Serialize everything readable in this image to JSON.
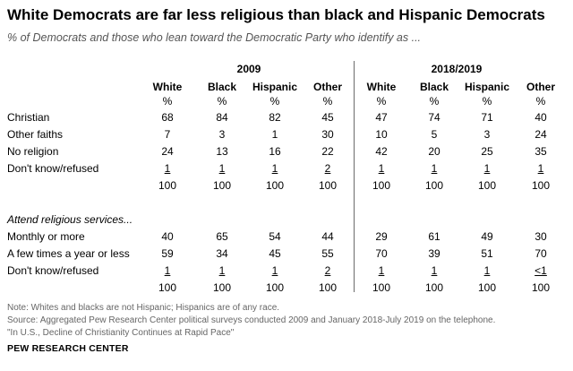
{
  "chart_data": {
    "type": "table",
    "title": "White Democrats are far less religious than black and Hispanic Democrats",
    "subtitle": "% of Democrats and those who lean toward the Democratic Party who identify as ...",
    "groups": [
      "2009",
      "2018/2019"
    ],
    "columns": [
      "White",
      "Black",
      "Hispanic",
      "Other",
      "White",
      "Black",
      "Hispanic",
      "Other"
    ],
    "unit": "%",
    "rows": [
      {
        "label": "Christian",
        "values": [
          "68",
          "84",
          "82",
          "45",
          "47",
          "74",
          "71",
          "40"
        ],
        "underline": false
      },
      {
        "label": "Other faiths",
        "values": [
          "7",
          "3",
          "1",
          "30",
          "10",
          "5",
          "3",
          "24"
        ],
        "underline": false
      },
      {
        "label": "No religion",
        "values": [
          "24",
          "13",
          "16",
          "22",
          "42",
          "20",
          "25",
          "35"
        ],
        "underline": false
      },
      {
        "label": "Don't know/refused",
        "values": [
          "1",
          "1",
          "1",
          "2",
          "1",
          "1",
          "1",
          "1"
        ],
        "underline": true
      },
      {
        "label": "",
        "values": [
          "100",
          "100",
          "100",
          "100",
          "100",
          "100",
          "100",
          "100"
        ],
        "underline": false
      },
      {
        "label": "Attend religious services...",
        "values": [],
        "underline": false,
        "section": true
      },
      {
        "label": "Monthly or more",
        "values": [
          "40",
          "65",
          "54",
          "44",
          "29",
          "61",
          "49",
          "30"
        ],
        "underline": false
      },
      {
        "label": "A few times a year or less",
        "values": [
          "59",
          "34",
          "45",
          "55",
          "70",
          "39",
          "51",
          "70"
        ],
        "underline": false
      },
      {
        "label": "Don't know/refused",
        "values": [
          "1",
          "1",
          "1",
          "2",
          "1",
          "1",
          "1",
          "<1"
        ],
        "underline": true
      },
      {
        "label": "",
        "values": [
          "100",
          "100",
          "100",
          "100",
          "100",
          "100",
          "100",
          "100"
        ],
        "underline": false
      }
    ]
  },
  "notes": [
    "Note: Whites and blacks are not Hispanic; Hispanics are of any race.",
    "Source: Aggregated Pew Research Center political surveys conducted 2009 and January 2018-July 2019 on the telephone.",
    "\"In U.S., Decline of Christianity Continues at Rapid Pace\""
  ],
  "brand": "PEW RESEARCH CENTER"
}
